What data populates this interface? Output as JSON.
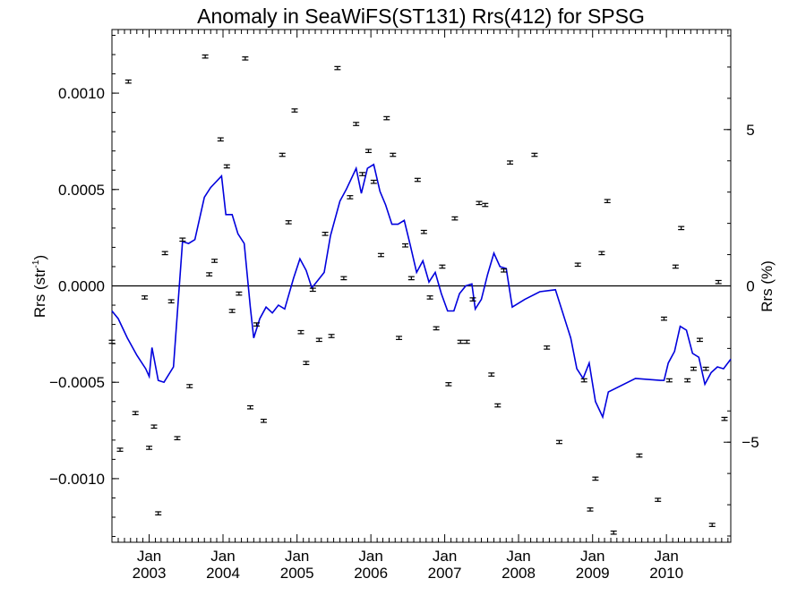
{
  "chart_data": {
    "type": "scatter",
    "title": "Anomaly in SeaWiFS(ST131) Rrs(412) for SPSG",
    "ylabel_left": {
      "main": "Rrs (str",
      "sup": "-1",
      "close": ")"
    },
    "ylabel_right": "Rrs (%)",
    "x_range": [
      "2002-07-01",
      "2010-11-15"
    ],
    "ylim": [
      -0.00133,
      0.00133
    ],
    "ylim_right": [
      -8.2,
      8.2
    ],
    "y_ticks": [
      {
        "value": 0.001,
        "label": "0.0010"
      },
      {
        "value": 0.0005,
        "label": "0.0005"
      },
      {
        "value": 0,
        "label": "0.0000"
      },
      {
        "value": -0.0005,
        "label": "−0.0005"
      },
      {
        "value": -0.001,
        "label": "−0.0010"
      }
    ],
    "y_ticks_right": [
      {
        "value": 5,
        "label": "5"
      },
      {
        "value": 0,
        "label": "0"
      },
      {
        "value": -5,
        "label": "−5"
      }
    ],
    "x_ticks": [
      {
        "date": "2003-01-01",
        "month": "Jan",
        "year": "2003"
      },
      {
        "date": "2004-01-01",
        "month": "Jan",
        "year": "2004"
      },
      {
        "date": "2005-01-01",
        "month": "Jan",
        "year": "2005"
      },
      {
        "date": "2006-01-01",
        "month": "Jan",
        "year": "2006"
      },
      {
        "date": "2007-01-01",
        "month": "Jan",
        "year": "2007"
      },
      {
        "date": "2008-01-01",
        "month": "Jan",
        "year": "2008"
      },
      {
        "date": "2009-01-01",
        "month": "Jan",
        "year": "2009"
      },
      {
        "date": "2010-01-01",
        "month": "Jan",
        "year": "2010"
      }
    ],
    "zero_line": true,
    "error_bar_halfwidth": 8e-06,
    "series": [
      {
        "type": "scatter-errorbar",
        "color": "#000000",
        "points": [
          [
            "2002-07-01",
            -0.00029
          ],
          [
            "2002-08-10",
            -0.00085
          ],
          [
            "2002-09-20",
            0.00106
          ],
          [
            "2002-10-25",
            -0.00066
          ],
          [
            "2002-12-10",
            -6e-05
          ],
          [
            "2003-01-01",
            -0.00084
          ],
          [
            "2003-01-25",
            -0.00073
          ],
          [
            "2003-02-15",
            -0.00118
          ],
          [
            "2003-03-20",
            0.00017
          ],
          [
            "2003-04-20",
            -8e-05
          ],
          [
            "2003-05-20",
            -0.00079
          ],
          [
            "2003-06-15",
            0.00024
          ],
          [
            "2003-07-20",
            -0.00052
          ],
          [
            "2003-10-05",
            0.00119
          ],
          [
            "2003-10-25",
            6e-05
          ],
          [
            "2003-11-20",
            0.00013
          ],
          [
            "2003-12-20",
            0.00076
          ],
          [
            "2004-01-20",
            0.00062
          ],
          [
            "2004-02-15",
            -0.00013
          ],
          [
            "2004-03-20",
            -4e-05
          ],
          [
            "2004-04-20",
            0.00118
          ],
          [
            "2004-05-15",
            -0.00063
          ],
          [
            "2004-06-15",
            -0.0002
          ],
          [
            "2004-07-20",
            -0.0007
          ],
          [
            "2004-10-20",
            0.00068
          ],
          [
            "2004-11-20",
            0.00033
          ],
          [
            "2004-12-20",
            0.00091
          ],
          [
            "2005-01-20",
            -0.00024
          ],
          [
            "2005-02-15",
            -0.0004
          ],
          [
            "2005-03-20",
            -2e-05
          ],
          [
            "2005-04-20",
            -0.00028
          ],
          [
            "2005-05-20",
            0.00027
          ],
          [
            "2005-06-20",
            -0.00026
          ],
          [
            "2005-07-20",
            0.00113
          ],
          [
            "2005-08-20",
            4e-05
          ],
          [
            "2005-09-20",
            0.00046
          ],
          [
            "2005-10-20",
            0.00084
          ],
          [
            "2005-11-20",
            0.00058
          ],
          [
            "2005-12-20",
            0.0007
          ],
          [
            "2006-01-15",
            0.00054
          ],
          [
            "2006-02-20",
            0.00016
          ],
          [
            "2006-03-20",
            0.00087
          ],
          [
            "2006-04-20",
            0.00068
          ],
          [
            "2006-05-20",
            -0.00027
          ],
          [
            "2006-06-20",
            0.00021
          ],
          [
            "2006-07-20",
            4e-05
          ],
          [
            "2006-08-20",
            0.00055
          ],
          [
            "2006-09-20",
            0.00028
          ],
          [
            "2006-10-20",
            -6e-05
          ],
          [
            "2006-11-20",
            -0.00022
          ],
          [
            "2006-12-20",
            0.0001
          ],
          [
            "2007-01-20",
            -0.00051
          ],
          [
            "2007-02-20",
            0.00035
          ],
          [
            "2007-03-20",
            -0.00029
          ],
          [
            "2007-04-20",
            -0.00029
          ],
          [
            "2007-05-20",
            -7e-05
          ],
          [
            "2007-06-20",
            0.00043
          ],
          [
            "2007-07-20",
            0.00042
          ],
          [
            "2007-08-20",
            -0.00046
          ],
          [
            "2007-09-20",
            -0.00062
          ],
          [
            "2007-10-20",
            8e-05
          ],
          [
            "2007-11-20",
            0.00064
          ],
          [
            "2008-03-20",
            0.00068
          ],
          [
            "2008-05-20",
            -0.00032
          ],
          [
            "2008-07-20",
            -0.00081
          ],
          [
            "2008-10-20",
            0.00011
          ],
          [
            "2008-11-20",
            -0.00049
          ],
          [
            "2008-12-20",
            -0.00116
          ],
          [
            "2009-01-15",
            -0.001
          ],
          [
            "2009-02-15",
            0.00017
          ],
          [
            "2009-03-15",
            0.00044
          ],
          [
            "2009-04-15",
            -0.00128
          ],
          [
            "2009-08-20",
            -0.00088
          ],
          [
            "2009-11-20",
            -0.00111
          ],
          [
            "2009-12-20",
            -0.00017
          ],
          [
            "2010-01-15",
            -0.00049
          ],
          [
            "2010-02-15",
            0.0001
          ],
          [
            "2010-03-15",
            0.0003
          ],
          [
            "2010-04-15",
            -0.00049
          ],
          [
            "2010-05-15",
            -0.00043
          ],
          [
            "2010-06-15",
            -0.00028
          ],
          [
            "2010-07-15",
            -0.00043
          ],
          [
            "2010-08-15",
            -0.00124
          ],
          [
            "2010-09-15",
            2e-05
          ],
          [
            "2010-10-15",
            -0.00069
          ]
        ]
      },
      {
        "type": "line",
        "color": "#0000dd",
        "axis": "left",
        "points": [
          [
            "2002-07-01",
            -0.00013
          ],
          [
            "2002-08-01",
            -0.00017
          ],
          [
            "2002-09-15",
            -0.00027
          ],
          [
            "2002-11-01",
            -0.00036
          ],
          [
            "2002-12-15",
            -0.00043
          ],
          [
            "2003-01-01",
            -0.00047
          ],
          [
            "2003-01-15",
            -0.00032
          ],
          [
            "2003-02-15",
            -0.00049
          ],
          [
            "2003-03-15",
            -0.0005
          ],
          [
            "2003-05-01",
            -0.00042
          ],
          [
            "2003-06-15",
            0.00023
          ],
          [
            "2003-07-15",
            0.00022
          ],
          [
            "2003-08-15",
            0.00024
          ],
          [
            "2003-10-01",
            0.00046
          ],
          [
            "2003-11-01",
            0.00051
          ],
          [
            "2003-12-25",
            0.00057
          ],
          [
            "2004-01-15",
            0.00037
          ],
          [
            "2004-02-15",
            0.00037
          ],
          [
            "2004-03-15",
            0.00027
          ],
          [
            "2004-04-15",
            0.00022
          ],
          [
            "2004-05-15",
            -0.00011
          ],
          [
            "2004-06-01",
            -0.00027
          ],
          [
            "2004-07-01",
            -0.00017
          ],
          [
            "2004-08-01",
            -0.00011
          ],
          [
            "2004-09-01",
            -0.00014
          ],
          [
            "2004-10-01",
            -0.0001
          ],
          [
            "2004-11-01",
            -0.00012
          ],
          [
            "2004-12-15",
            4e-05
          ],
          [
            "2005-01-15",
            0.00014
          ],
          [
            "2005-02-15",
            8e-05
          ],
          [
            "2005-03-15",
            -1e-05
          ],
          [
            "2005-04-15",
            3e-05
          ],
          [
            "2005-05-15",
            7e-05
          ],
          [
            "2005-06-15",
            0.00026
          ],
          [
            "2005-08-01",
            0.00044
          ],
          [
            "2005-09-01",
            0.0005
          ],
          [
            "2005-10-20",
            0.00061
          ],
          [
            "2005-11-15",
            0.00048
          ],
          [
            "2005-12-15",
            0.00061
          ],
          [
            "2006-01-15",
            0.00063
          ],
          [
            "2006-02-15",
            0.00049
          ],
          [
            "2006-03-15",
            0.00042
          ],
          [
            "2006-04-15",
            0.00032
          ],
          [
            "2006-05-15",
            0.00032
          ],
          [
            "2006-06-15",
            0.00034
          ],
          [
            "2006-07-15",
            0.00021
          ],
          [
            "2006-08-15",
            7e-05
          ],
          [
            "2006-09-15",
            0.00013
          ],
          [
            "2006-10-15",
            2e-05
          ],
          [
            "2006-11-15",
            7e-05
          ],
          [
            "2006-12-15",
            -4e-05
          ],
          [
            "2007-01-15",
            -0.00013
          ],
          [
            "2007-02-15",
            -0.00013
          ],
          [
            "2007-03-15",
            -4e-05
          ],
          [
            "2007-04-15",
            0
          ],
          [
            "2007-05-15",
            1e-05
          ],
          [
            "2007-06-01",
            -0.00012
          ],
          [
            "2007-07-01",
            -7e-05
          ],
          [
            "2007-08-01",
            6e-05
          ],
          [
            "2007-09-01",
            0.00017
          ],
          [
            "2007-10-01",
            0.0001
          ],
          [
            "2007-11-01",
            9e-05
          ],
          [
            "2007-12-01",
            -0.00011
          ],
          [
            "2008-02-01",
            -7e-05
          ],
          [
            "2008-04-15",
            -3e-05
          ],
          [
            "2008-07-01",
            -2e-05
          ],
          [
            "2008-09-15",
            -0.00027
          ],
          [
            "2008-10-15",
            -0.00043
          ],
          [
            "2008-11-15",
            -0.00048
          ],
          [
            "2008-12-15",
            -0.0004
          ],
          [
            "2009-01-15",
            -0.0006
          ],
          [
            "2009-02-20",
            -0.00068
          ],
          [
            "2009-03-20",
            -0.00055
          ],
          [
            "2009-08-01",
            -0.00048
          ],
          [
            "2009-12-01",
            -0.00049
          ],
          [
            "2009-12-20",
            -0.00049
          ],
          [
            "2010-01-10",
            -0.0004
          ],
          [
            "2010-02-10",
            -0.00034
          ],
          [
            "2010-03-10",
            -0.00021
          ],
          [
            "2010-04-10",
            -0.00023
          ],
          [
            "2010-05-10",
            -0.00035
          ],
          [
            "2010-06-10",
            -0.00037
          ],
          [
            "2010-07-10",
            -0.00051
          ],
          [
            "2010-08-10",
            -0.00045
          ],
          [
            "2010-09-10",
            -0.00042
          ],
          [
            "2010-10-10",
            -0.00043
          ],
          [
            "2010-11-15",
            -0.00038
          ]
        ]
      }
    ]
  }
}
